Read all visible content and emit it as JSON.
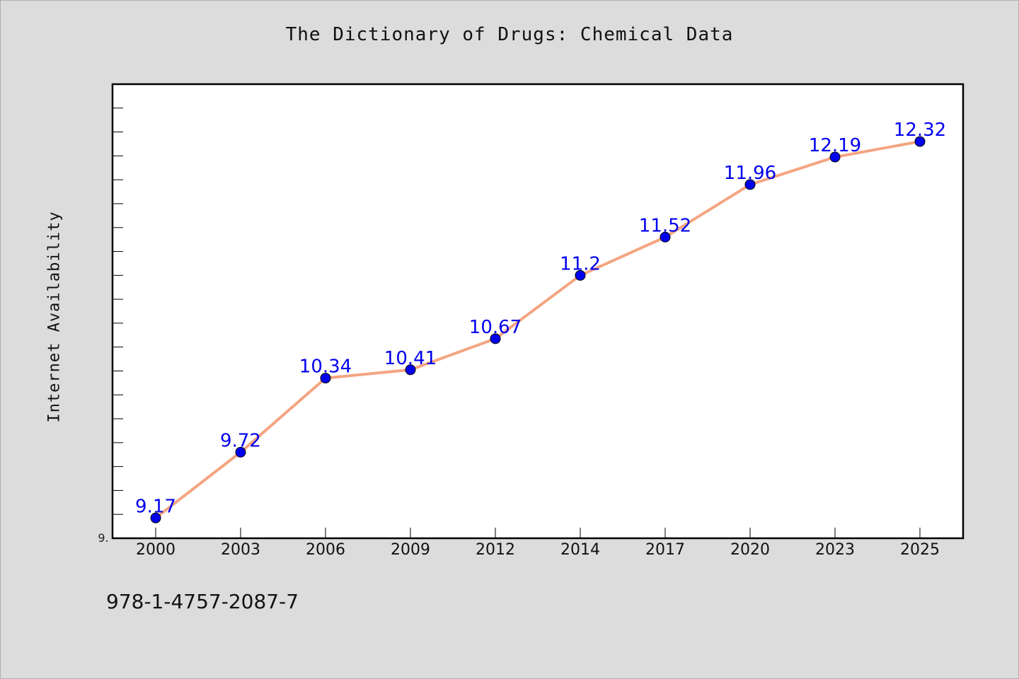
{
  "title": "The Dictionary of Drugs: Chemical Data",
  "ylabel": "Internet Availability",
  "footer_text": "978-1-4757-2087-7",
  "y_tick_partial_label": "9.",
  "colors": {
    "background": "#dcdcdc",
    "plot_background": "#ffffff",
    "line": "#f4a582",
    "marker": "#0000ee",
    "data_label": "#0000ee"
  },
  "chart_data": {
    "type": "line",
    "title": "The Dictionary of Drugs: Chemical Data",
    "xlabel": "",
    "ylabel": "Internet Availability",
    "categories": [
      "2000",
      "2003",
      "2006",
      "2009",
      "2012",
      "2014",
      "2017",
      "2020",
      "2023",
      "2025"
    ],
    "series": [
      {
        "values": [
          9.17,
          9.72,
          10.34,
          10.41,
          10.67,
          11.2,
          11.52,
          11.96,
          12.19,
          12.32
        ],
        "labels": [
          "9.17",
          "9.72",
          "10.34",
          "10.41",
          "10.67",
          "11.2",
          "11.52",
          "11.96",
          "12.19",
          "12.32"
        ]
      }
    ],
    "ylim": [
      9.0,
      12.8
    ],
    "grid": false,
    "legend": "none"
  }
}
